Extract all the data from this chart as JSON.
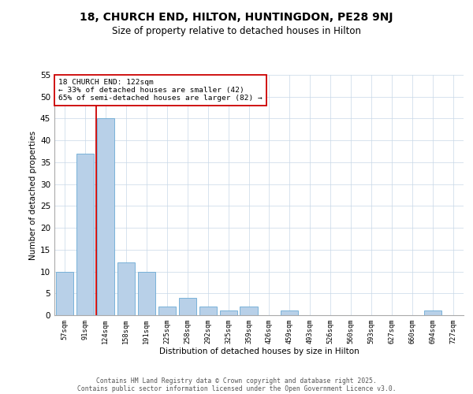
{
  "title1": "18, CHURCH END, HILTON, HUNTINGDON, PE28 9NJ",
  "title2": "Size of property relative to detached houses in Hilton",
  "xlabel": "Distribution of detached houses by size in Hilton",
  "ylabel": "Number of detached properties",
  "categories": [
    "57sqm",
    "91sqm",
    "124sqm",
    "158sqm",
    "191sqm",
    "225sqm",
    "258sqm",
    "292sqm",
    "325sqm",
    "359sqm",
    "426sqm",
    "459sqm",
    "493sqm",
    "526sqm",
    "560sqm",
    "593sqm",
    "627sqm",
    "660sqm",
    "694sqm",
    "727sqm"
  ],
  "values": [
    10,
    37,
    45,
    12,
    10,
    2,
    4,
    2,
    1,
    2,
    0,
    1,
    0,
    0,
    0,
    0,
    0,
    0,
    1,
    0
  ],
  "bar_color": "#b8d0e8",
  "bar_edge_color": "#6aaad4",
  "vline_color": "#cc0000",
  "annotation_text": "18 CHURCH END: 122sqm\n← 33% of detached houses are smaller (42)\n65% of semi-detached houses are larger (82) →",
  "annotation_box_color": "#ffffff",
  "annotation_box_edge": "#cc0000",
  "ylim": [
    0,
    55
  ],
  "yticks": [
    0,
    5,
    10,
    15,
    20,
    25,
    30,
    35,
    40,
    45,
    50,
    55
  ],
  "footer_line1": "Contains HM Land Registry data © Crown copyright and database right 2025.",
  "footer_line2": "Contains public sector information licensed under the Open Government Licence v3.0.",
  "bg_color": "#ffffff",
  "grid_color": "#c8d8e8"
}
